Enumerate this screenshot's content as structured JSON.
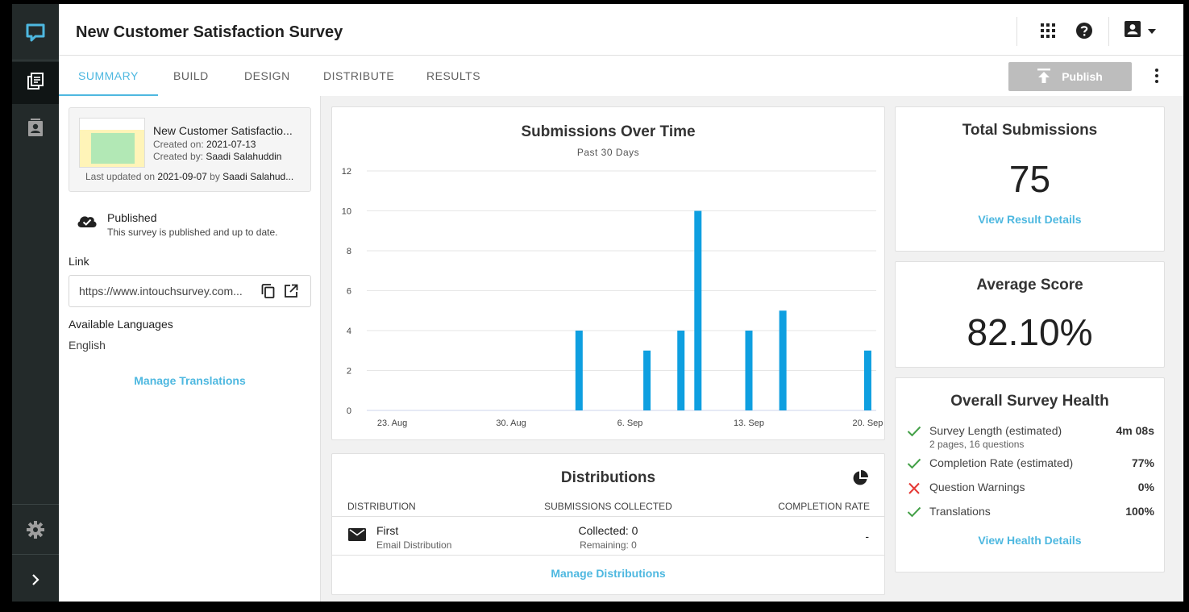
{
  "header": {
    "title": "New Customer Satisfaction Survey"
  },
  "tabs": [
    {
      "label": "SUMMARY"
    },
    {
      "label": "BUILD"
    },
    {
      "label": "DESIGN"
    },
    {
      "label": "DISTRIBUTE"
    },
    {
      "label": "RESULTS"
    }
  ],
  "toolbar": {
    "publish_label": "Publish"
  },
  "survey_card": {
    "title": "New Customer Satisfactio...",
    "created_on_label": "Created on: ",
    "created_on": "2021-07-13",
    "created_by_label": "Created by: ",
    "created_by": "Saadi Salahuddin",
    "updated_label": "Last updated on ",
    "updated_on": "2021-09-07",
    "updated_by_label": " by ",
    "updated_by": "Saadi Salahud..."
  },
  "status": {
    "title": "Published",
    "subtitle": "This survey is published and up to date."
  },
  "link": {
    "label": "Link",
    "url": "https://www.intouchsurvey.com..."
  },
  "languages": {
    "label": "Available Languages",
    "value": "English",
    "manage_label": "Manage Translations"
  },
  "chart_data": {
    "type": "bar",
    "title": "Submissions Over Time",
    "subtitle": "Past 30 Days",
    "x_tick_labels": [
      "23. Aug",
      "30. Aug",
      "6. Sep",
      "13. Sep",
      "20. Sep"
    ],
    "y_ticks": [
      0,
      2,
      4,
      6,
      8,
      10,
      12
    ],
    "ylim": [
      0,
      12
    ],
    "color": "#0e9fe0",
    "grid": true,
    "points": [
      {
        "date": "2021-09-03",
        "value": 4
      },
      {
        "date": "2021-09-07",
        "value": 3
      },
      {
        "date": "2021-09-09",
        "value": 4
      },
      {
        "date": "2021-09-10",
        "value": 10
      },
      {
        "date": "2021-09-13",
        "value": 4
      },
      {
        "date": "2021-09-15",
        "value": 5
      },
      {
        "date": "2021-09-20",
        "value": 3
      }
    ]
  },
  "distributions": {
    "title": "Distributions",
    "columns": [
      "DISTRIBUTION",
      "SUBMISSIONS COLLECTED",
      "COMPLETION RATE"
    ],
    "rows": [
      {
        "name": "First",
        "type": "Email Distribution",
        "collected": "Collected: 0",
        "remaining": "Remaining: 0",
        "rate": "-"
      }
    ],
    "manage_label": "Manage Distributions"
  },
  "total_submissions": {
    "title": "Total Submissions",
    "value": "75",
    "link": "View Result Details"
  },
  "average_score": {
    "title": "Average Score",
    "value": "82.10%"
  },
  "health": {
    "title": "Overall Survey Health",
    "items": [
      {
        "label": "Survey Length (estimated)",
        "sub": "2 pages, 16 questions",
        "value": "4m 08s",
        "status": "ok"
      },
      {
        "label": "Completion Rate (estimated)",
        "sub": "",
        "value": "77%",
        "status": "ok"
      },
      {
        "label": "Question Warnings",
        "sub": "",
        "value": "0%",
        "status": "error"
      },
      {
        "label": "Translations",
        "sub": "",
        "value": "100%",
        "status": "ok"
      }
    ],
    "link": "View Health Details"
  },
  "colors": {
    "accent": "#4eb8e0",
    "bar": "#0e9fe0",
    "sidebar": "#232a2a",
    "ok": "#43a047",
    "error": "#e53935"
  }
}
